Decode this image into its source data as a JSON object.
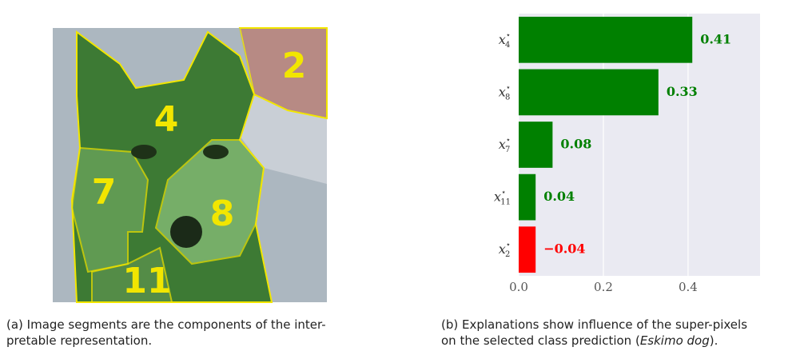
{
  "image": {
    "segment_labels": [
      "2",
      "4",
      "7",
      "8",
      "11"
    ]
  },
  "caption_a": {
    "lines": [
      "(a) Image segments are the components of the inter-",
      "pretable representation."
    ]
  },
  "caption_b": {
    "line1": "(b) Explanations show influence of the super-pixels",
    "line2_start": "on the selected class prediction (",
    "line2_italic": "Eskimo dog",
    "line2_end": ")."
  },
  "chart_data": {
    "type": "barh",
    "categories": [
      {
        "base": "x",
        "sup": "⋆",
        "sub": "4"
      },
      {
        "base": "x",
        "sup": "⋆",
        "sub": "8"
      },
      {
        "base": "x",
        "sup": "⋆",
        "sub": "7"
      },
      {
        "base": "x",
        "sup": "⋆",
        "sub": "11"
      },
      {
        "base": "x",
        "sup": "⋆",
        "sub": "2"
      }
    ],
    "values": [
      0.41,
      0.33,
      0.08,
      0.04,
      -0.04
    ],
    "value_labels": [
      "0.41",
      "0.33",
      "0.08",
      "0.04",
      "−0.04"
    ],
    "colors": [
      "#008000",
      "#008000",
      "#008000",
      "#008000",
      "#ff0000"
    ],
    "xlim": [
      0,
      0.57
    ],
    "xticks": [
      {
        "value": 0,
        "label": "0.0"
      },
      0.2,
      0.4
    ],
    "grid": true
  }
}
